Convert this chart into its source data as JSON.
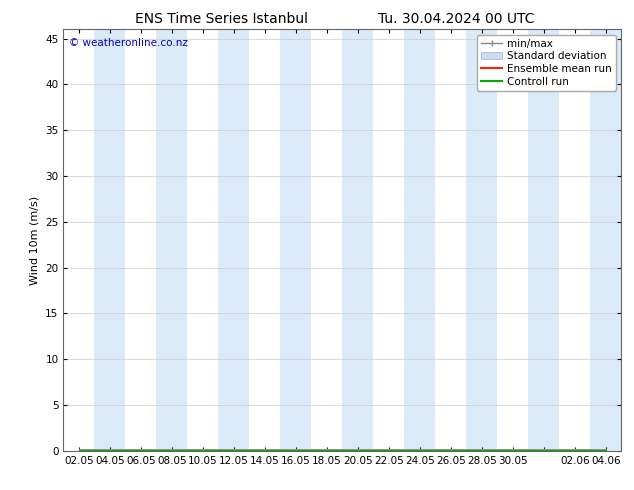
{
  "title_left": "ENS Time Series Istanbul",
  "title_right": "Tu. 30.04.2024 00 UTC",
  "ylabel": "Wind 10m (m/s)",
  "ylim": [
    0,
    46
  ],
  "yticks": [
    0,
    5,
    10,
    15,
    20,
    25,
    30,
    35,
    40,
    45
  ],
  "xtick_labels": [
    "02.05",
    "04.05",
    "06.05",
    "08.05",
    "10.05",
    "12.05",
    "14.05",
    "16.05",
    "18.05",
    "20.05",
    "22.05",
    "24.05",
    "26.05",
    "28.05",
    "30.05",
    "",
    "02.06",
    "04.06"
  ],
  "copyright_text": "© weatheronline.co.nz",
  "bg_color": "#ffffff",
  "plot_bg_color": "#ffffff",
  "band_color": "#daeaf8",
  "shaded_indices": [
    1,
    3,
    5,
    7,
    9,
    11,
    13,
    15,
    17
  ],
  "legend_labels": [
    "min/max",
    "Standard deviation",
    "Ensemble mean run",
    "Controll run"
  ],
  "title_fontsize": 10,
  "axis_fontsize": 8,
  "tick_fontsize": 7.5,
  "copyright_fontsize": 7.5
}
